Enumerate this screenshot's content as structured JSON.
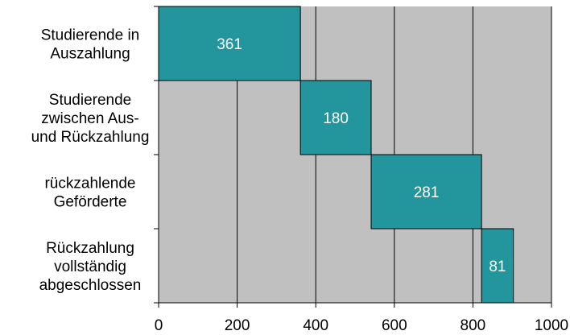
{
  "chart_data": {
    "type": "bar",
    "orientation": "horizontal",
    "stacked_waterfall": true,
    "categories": [
      [
        "Studierende in",
        "Auszahlung"
      ],
      [
        "Studierende",
        "zwischen Aus-",
        "und Rückzahlung"
      ],
      [
        "rückzahlende",
        "Geförderte"
      ],
      [
        "Rückzahlung",
        "vollständig",
        "abgeschlossen"
      ]
    ],
    "values": [
      361,
      180,
      281,
      81
    ],
    "data_labels": [
      "361",
      "180",
      "281",
      "81"
    ],
    "xlim": [
      0,
      1000
    ],
    "x_ticks": [
      0,
      200,
      400,
      600,
      800,
      1000
    ],
    "x_tick_labels": [
      "0",
      "200",
      "400",
      "600",
      "800",
      "1000"
    ],
    "title": "",
    "xlabel": "",
    "ylabel": "",
    "grid": "vertical",
    "legend": "none",
    "colors": {
      "bar": "#23969d",
      "plot_background": "#c0c0c0"
    }
  }
}
